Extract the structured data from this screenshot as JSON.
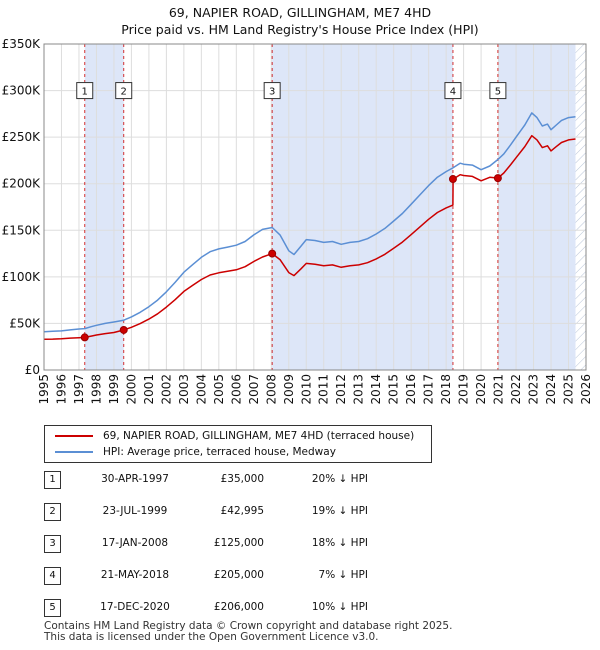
{
  "title_line1": "69, NAPIER ROAD, GILLINGHAM, ME7 4HD",
  "title_line2": "Price paid vs. HM Land Registry's House Price Index (HPI)",
  "colors": {
    "property": "#cc0000",
    "hpi": "#5b8fd4",
    "shade": "#dde6f8",
    "grid": "#dddddd"
  },
  "legend": {
    "property": "69, NAPIER ROAD, GILLINGHAM, ME7 4HD (terraced house)",
    "hpi": "HPI: Average price, terraced house, Medway"
  },
  "sales": [
    {
      "num": "1",
      "date": "30-APR-1997",
      "price": "£35,000",
      "hpi": "20% ↓ HPI"
    },
    {
      "num": "2",
      "date": "23-JUL-1999",
      "price": "£42,995",
      "hpi": "19% ↓ HPI"
    },
    {
      "num": "3",
      "date": "17-JAN-2008",
      "price": "£125,000",
      "hpi": "18% ↓ HPI"
    },
    {
      "num": "4",
      "date": "21-MAY-2018",
      "price": "£205,000",
      "hpi": "7% ↓ HPI"
    },
    {
      "num": "5",
      "date": "17-DEC-2020",
      "price": "£206,000",
      "hpi": "10% ↓ HPI"
    }
  ],
  "footer_line1": "Contains HM Land Registry data © Crown copyright and database right 2025.",
  "footer_line2": "This data is licensed under the Open Government Licence v3.0.",
  "chart_data": {
    "type": "line",
    "title": "69, NAPIER ROAD, GILLINGHAM, ME7 4HD — Price paid vs. HM Land Registry's House Price Index (HPI)",
    "xlim": [
      1995,
      2026
    ],
    "ylim": [
      0,
      350000
    ],
    "x_ticks": [
      1995,
      1996,
      1997,
      1998,
      1999,
      2000,
      2001,
      2002,
      2003,
      2004,
      2005,
      2006,
      2007,
      2008,
      2009,
      2010,
      2011,
      2012,
      2013,
      2014,
      2015,
      2016,
      2017,
      2018,
      2019,
      2020,
      2021,
      2022,
      2023,
      2024,
      2025,
      2026
    ],
    "y_ticks": [
      {
        "value": 0,
        "label": "£0"
      },
      {
        "value": 50000,
        "label": "£50K"
      },
      {
        "value": 100000,
        "label": "£100K"
      },
      {
        "value": 150000,
        "label": "£150K"
      },
      {
        "value": 200000,
        "label": "£200K"
      },
      {
        "value": 250000,
        "label": "£250K"
      },
      {
        "value": 300000,
        "label": "£300K"
      },
      {
        "value": 350000,
        "label": "£350K"
      }
    ],
    "shaded_periods": [
      [
        1997.33,
        1999.56
      ],
      [
        2008.05,
        2018.39
      ],
      [
        2020.96,
        2025.4
      ]
    ],
    "hatched_from": 2025.4,
    "series": [
      {
        "name": "HPI: Average price, terraced house, Medway",
        "color": "#5b8fd4",
        "points": [
          [
            1995.0,
            41000
          ],
          [
            1995.5,
            41500
          ],
          [
            1996.0,
            42000
          ],
          [
            1996.5,
            43000
          ],
          [
            1997.0,
            44000
          ],
          [
            1997.33,
            44500
          ],
          [
            1997.7,
            46500
          ],
          [
            1998.0,
            48000
          ],
          [
            1998.5,
            50000
          ],
          [
            1999.0,
            51500
          ],
          [
            1999.56,
            53500
          ],
          [
            2000.0,
            57000
          ],
          [
            2000.5,
            62000
          ],
          [
            2001.0,
            68000
          ],
          [
            2001.5,
            75000
          ],
          [
            2002.0,
            84000
          ],
          [
            2002.5,
            94000
          ],
          [
            2003.0,
            105000
          ],
          [
            2003.5,
            113000
          ],
          [
            2004.0,
            121000
          ],
          [
            2004.5,
            127000
          ],
          [
            2005.0,
            130000
          ],
          [
            2005.5,
            132000
          ],
          [
            2006.0,
            134000
          ],
          [
            2006.5,
            138000
          ],
          [
            2007.0,
            145000
          ],
          [
            2007.5,
            151000
          ],
          [
            2008.05,
            153000
          ],
          [
            2008.5,
            145000
          ],
          [
            2009.0,
            128000
          ],
          [
            2009.3,
            124000
          ],
          [
            2009.7,
            133000
          ],
          [
            2010.0,
            140000
          ],
          [
            2010.5,
            139000
          ],
          [
            2011.0,
            137000
          ],
          [
            2011.5,
            138000
          ],
          [
            2012.0,
            135000
          ],
          [
            2012.5,
            137000
          ],
          [
            2013.0,
            138000
          ],
          [
            2013.5,
            141000
          ],
          [
            2014.0,
            146000
          ],
          [
            2014.5,
            152000
          ],
          [
            2015.0,
            160000
          ],
          [
            2015.5,
            168000
          ],
          [
            2016.0,
            178000
          ],
          [
            2016.5,
            188000
          ],
          [
            2017.0,
            198000
          ],
          [
            2017.5,
            207000
          ],
          [
            2018.0,
            213000
          ],
          [
            2018.39,
            217000
          ],
          [
            2018.8,
            222000
          ],
          [
            2019.0,
            221000
          ],
          [
            2019.5,
            220000
          ],
          [
            2020.0,
            215000
          ],
          [
            2020.5,
            219000
          ],
          [
            2020.96,
            226000
          ],
          [
            2021.3,
            232000
          ],
          [
            2021.7,
            242000
          ],
          [
            2022.0,
            250000
          ],
          [
            2022.5,
            263000
          ],
          [
            2022.9,
            276000
          ],
          [
            2023.2,
            271000
          ],
          [
            2023.5,
            262000
          ],
          [
            2023.8,
            264000
          ],
          [
            2024.0,
            258000
          ],
          [
            2024.3,
            263000
          ],
          [
            2024.6,
            268000
          ],
          [
            2025.0,
            271000
          ],
          [
            2025.4,
            272000
          ]
        ]
      },
      {
        "name": "69, NAPIER ROAD, GILLINGHAM, ME7 4HD (terraced house)",
        "color": "#cc0000",
        "points": [
          [
            1995.0,
            33000
          ],
          [
            1995.5,
            33200
          ],
          [
            1996.0,
            33600
          ],
          [
            1996.5,
            34200
          ],
          [
            1997.0,
            34700
          ],
          [
            1997.33,
            35000
          ],
          [
            1997.7,
            36400
          ],
          [
            1998.0,
            37600
          ],
          [
            1998.5,
            39100
          ],
          [
            1999.0,
            40300
          ],
          [
            1999.56,
            42995
          ],
          [
            2000.0,
            45800
          ],
          [
            2000.5,
            49800
          ],
          [
            2001.0,
            54600
          ],
          [
            2001.5,
            60300
          ],
          [
            2002.0,
            67500
          ],
          [
            2002.5,
            75500
          ],
          [
            2003.0,
            84400
          ],
          [
            2003.5,
            90800
          ],
          [
            2004.0,
            97200
          ],
          [
            2004.5,
            102000
          ],
          [
            2005.0,
            104400
          ],
          [
            2005.5,
            106000
          ],
          [
            2006.0,
            107600
          ],
          [
            2006.5,
            110900
          ],
          [
            2007.0,
            116500
          ],
          [
            2007.5,
            121300
          ],
          [
            2008.05,
            125000
          ],
          [
            2008.5,
            118500
          ],
          [
            2009.0,
            104600
          ],
          [
            2009.3,
            101300
          ],
          [
            2009.7,
            108700
          ],
          [
            2010.0,
            114400
          ],
          [
            2010.5,
            113600
          ],
          [
            2011.0,
            112000
          ],
          [
            2011.5,
            112800
          ],
          [
            2012.0,
            110300
          ],
          [
            2012.5,
            112000
          ],
          [
            2013.0,
            112800
          ],
          [
            2013.5,
            115200
          ],
          [
            2014.0,
            119300
          ],
          [
            2014.5,
            124200
          ],
          [
            2015.0,
            130700
          ],
          [
            2015.5,
            137300
          ],
          [
            2016.0,
            145400
          ],
          [
            2016.5,
            153600
          ],
          [
            2017.0,
            161800
          ],
          [
            2017.5,
            169100
          ],
          [
            2018.0,
            174000
          ],
          [
            2018.39,
            177000
          ],
          [
            2018.4,
            205000
          ],
          [
            2018.8,
            209700
          ],
          [
            2019.0,
            208800
          ],
          [
            2019.5,
            207800
          ],
          [
            2020.0,
            203100
          ],
          [
            2020.5,
            206900
          ],
          [
            2020.96,
            206000
          ],
          [
            2021.3,
            211500
          ],
          [
            2021.7,
            220600
          ],
          [
            2022.0,
            227900
          ],
          [
            2022.5,
            239800
          ],
          [
            2022.9,
            251600
          ],
          [
            2023.2,
            247000
          ],
          [
            2023.5,
            238800
          ],
          [
            2023.8,
            240700
          ],
          [
            2024.0,
            235200
          ],
          [
            2024.3,
            239800
          ],
          [
            2024.6,
            244300
          ],
          [
            2025.0,
            247000
          ],
          [
            2025.4,
            248000
          ]
        ]
      }
    ],
    "sales": [
      {
        "label": "1",
        "x": 1997.33,
        "y": 35000
      },
      {
        "label": "2",
        "x": 1999.56,
        "y": 42995
      },
      {
        "label": "3",
        "x": 2008.05,
        "y": 125000
      },
      {
        "label": "4",
        "x": 2018.39,
        "y": 205000
      },
      {
        "label": "5",
        "x": 2020.96,
        "y": 206000
      }
    ]
  }
}
